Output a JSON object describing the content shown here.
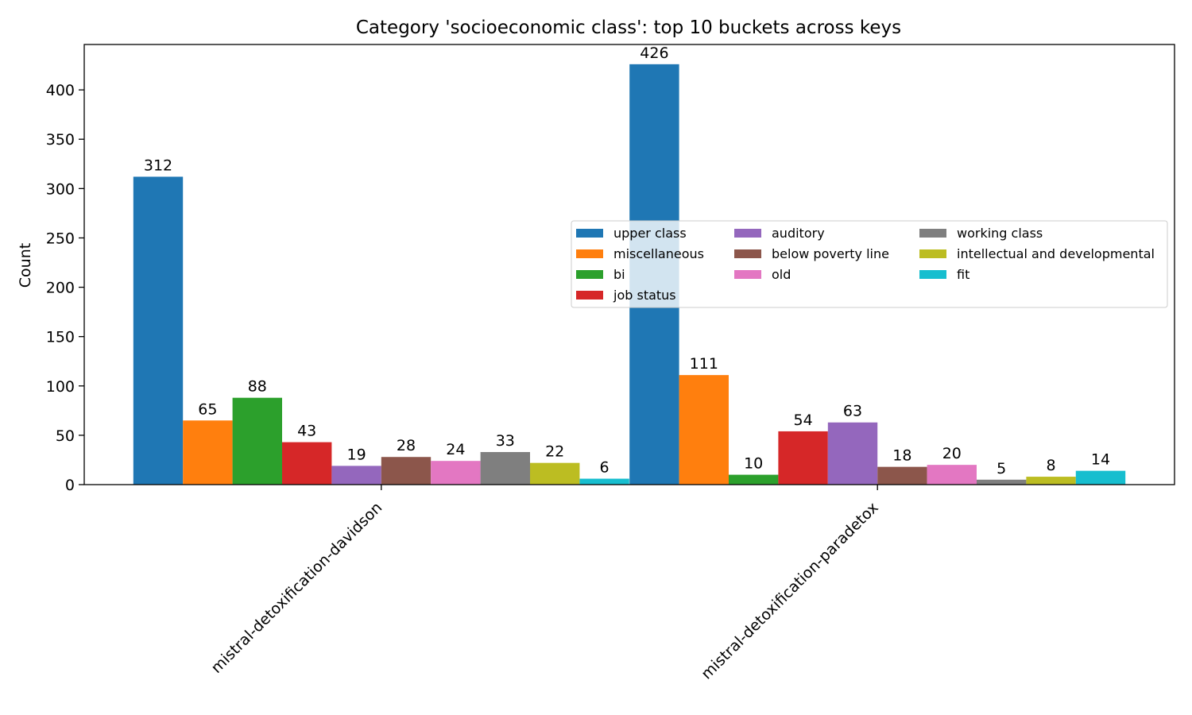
{
  "chart_data": {
    "type": "bar",
    "title": "Category 'socioeconomic class': top 10 buckets across keys",
    "xlabel": "",
    "ylabel": "Count",
    "ylim": [
      0,
      446
    ],
    "yticks": [
      0,
      50,
      100,
      150,
      200,
      250,
      300,
      350,
      400
    ],
    "categories": [
      "mistral-detoxification-davidson",
      "mistral-detoxification-paradetox"
    ],
    "legend_position": "center-right",
    "legend_columns": 3,
    "grid": false,
    "series": [
      {
        "name": "upper class",
        "color": "#1f77b4",
        "values": [
          312,
          426
        ]
      },
      {
        "name": "miscellaneous",
        "color": "#ff7f0e",
        "values": [
          65,
          111
        ]
      },
      {
        "name": "bi",
        "color": "#2ca02c",
        "values": [
          88,
          10
        ]
      },
      {
        "name": "job status",
        "color": "#d62728",
        "values": [
          43,
          54
        ]
      },
      {
        "name": "auditory",
        "color": "#9467bd",
        "values": [
          19,
          63
        ]
      },
      {
        "name": "below poverty line",
        "color": "#8c564b",
        "values": [
          28,
          18
        ]
      },
      {
        "name": "old",
        "color": "#e377c2",
        "values": [
          24,
          20
        ]
      },
      {
        "name": "working class",
        "color": "#7f7f7f",
        "values": [
          33,
          5
        ]
      },
      {
        "name": "intellectual and developmental",
        "color": "#bcbd22",
        "values": [
          22,
          8
        ]
      },
      {
        "name": "fit",
        "color": "#17becf",
        "values": [
          6,
          14
        ]
      }
    ]
  }
}
